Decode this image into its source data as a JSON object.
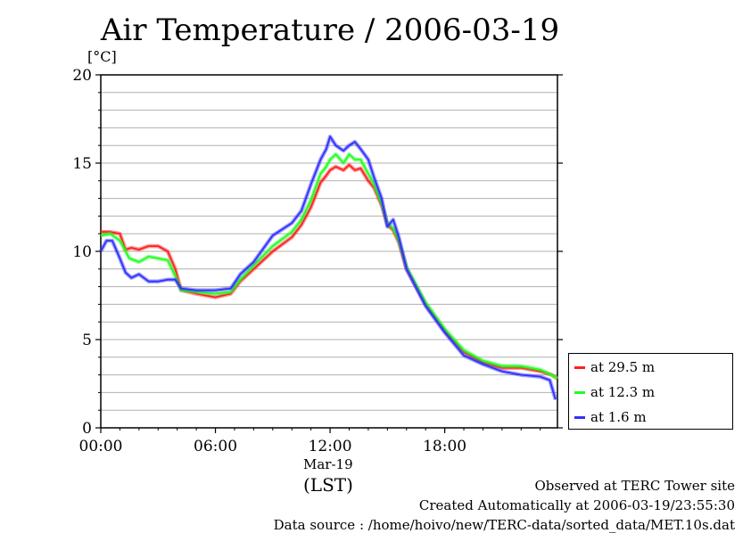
{
  "chart_data": {
    "type": "line",
    "title": "Air Temperature / 2006-03-19",
    "ylabel": "[°C]",
    "xlabel": "(LST)",
    "x_date_label": "Mar-19",
    "ylim": [
      0,
      20
    ],
    "yticks": [
      "0",
      "5",
      "10",
      "15",
      "20"
    ],
    "xticks": [
      "00:00",
      "06:00",
      "12:00",
      "18:00"
    ],
    "xlim_hours": [
      0,
      23.9
    ],
    "grid": true,
    "legend_position": "lower-right outside",
    "series": [
      {
        "name": "at 29.5 m",
        "color": "#ff2020",
        "hours": [
          0,
          0.5,
          1,
          1.3,
          1.6,
          2,
          2.5,
          3,
          3.5,
          3.9,
          4.2,
          5,
          6,
          6.8,
          7.3,
          8,
          9,
          10,
          10.5,
          11,
          11.5,
          11.8,
          12,
          12.3,
          12.7,
          13,
          13.3,
          13.6,
          14,
          14.3,
          14.7,
          15,
          15.3,
          15.6,
          16,
          17,
          18,
          19,
          20,
          21,
          22,
          23,
          23.6,
          23.9
        ],
        "values": [
          11.1,
          11.1,
          11.0,
          10.1,
          10.2,
          10.1,
          10.3,
          10.3,
          10.0,
          9.0,
          7.8,
          7.6,
          7.4,
          7.6,
          8.3,
          9.0,
          10.0,
          10.8,
          11.5,
          12.5,
          13.9,
          14.3,
          14.6,
          14.8,
          14.6,
          14.9,
          14.6,
          14.7,
          14.0,
          13.6,
          12.6,
          11.5,
          11.2,
          10.5,
          9.0,
          7.0,
          5.5,
          4.3,
          3.7,
          3.4,
          3.4,
          3.2,
          3.0,
          2.8
        ]
      },
      {
        "name": "at 12.3 m",
        "color": "#20ff20",
        "hours": [
          0,
          0.5,
          1,
          1.5,
          2,
          2.5,
          3,
          3.5,
          3.9,
          4.2,
          5,
          6,
          6.8,
          7.3,
          8,
          9,
          10,
          10.5,
          11,
          11.5,
          11.8,
          12,
          12.3,
          12.7,
          13,
          13.3,
          13.6,
          14,
          14.3,
          14.7,
          15,
          15.3,
          15.6,
          16,
          17,
          18,
          19,
          20,
          21,
          22,
          23,
          23.6,
          23.9
        ],
        "values": [
          10.9,
          11.0,
          10.6,
          9.6,
          9.4,
          9.7,
          9.6,
          9.5,
          8.6,
          7.8,
          7.7,
          7.6,
          7.7,
          8.4,
          9.2,
          10.3,
          11.1,
          11.8,
          12.9,
          14.4,
          14.8,
          15.2,
          15.5,
          15.0,
          15.5,
          15.2,
          15.2,
          14.4,
          13.8,
          12.7,
          11.6,
          11.3,
          10.6,
          9.1,
          7.1,
          5.6,
          4.4,
          3.8,
          3.5,
          3.5,
          3.3,
          3.0,
          2.8
        ]
      },
      {
        "name": "at 1.6 m",
        "color": "#3030ff",
        "hours": [
          0,
          0.3,
          0.6,
          1,
          1.3,
          1.6,
          2,
          2.5,
          3,
          3.5,
          3.9,
          4.2,
          5,
          6,
          6.8,
          7.3,
          8,
          9,
          10,
          10.5,
          11,
          11.5,
          11.8,
          12,
          12.3,
          12.7,
          13,
          13.3,
          13.6,
          14,
          14.3,
          14.7,
          15,
          15.3,
          15.6,
          16,
          17,
          18,
          19,
          20,
          21,
          22,
          23,
          23.5,
          23.8
        ],
        "values": [
          10.0,
          10.6,
          10.6,
          9.6,
          8.8,
          8.5,
          8.7,
          8.3,
          8.3,
          8.4,
          8.4,
          7.9,
          7.8,
          7.8,
          7.9,
          8.7,
          9.4,
          10.9,
          11.6,
          12.3,
          13.8,
          15.2,
          15.8,
          16.5,
          16.0,
          15.7,
          16.0,
          16.2,
          15.8,
          15.2,
          14.2,
          13.0,
          11.4,
          11.8,
          10.8,
          9.0,
          6.9,
          5.4,
          4.1,
          3.6,
          3.2,
          3.0,
          2.9,
          2.7,
          1.6
        ]
      }
    ]
  },
  "footer": {
    "site": "Observed at TERC Tower site",
    "created": "Created Automatically at 2006-03-19/23:55:30",
    "source": "Data source : /home/hoivo/new/TERC-data/sorted_data/MET.10s.dat"
  }
}
